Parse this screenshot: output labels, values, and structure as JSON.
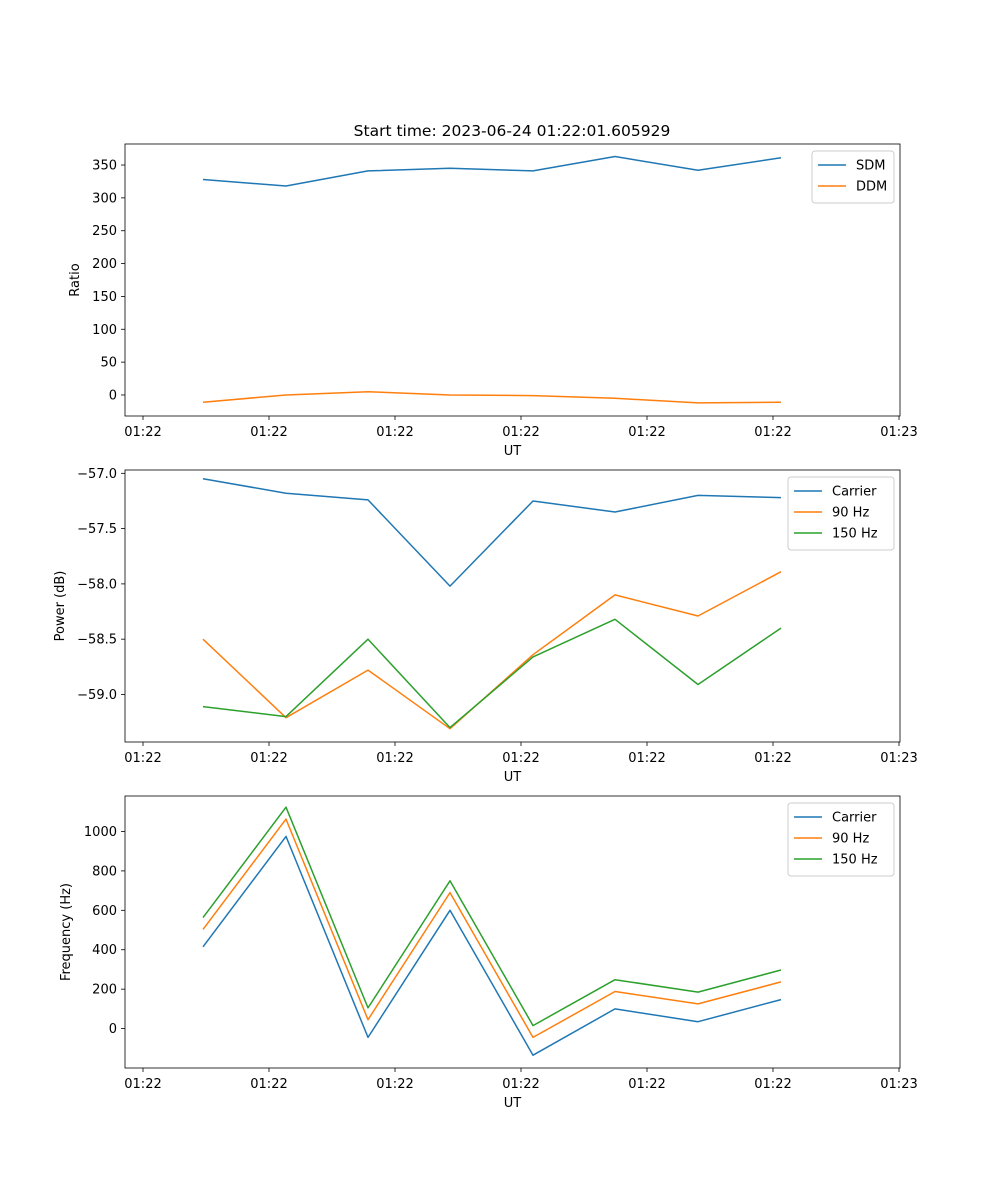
{
  "figure": {
    "title": "Start time: 2023-06-24 01:22:01.605929"
  },
  "colors": {
    "blue": "#1f77b4",
    "orange": "#ff7f0e",
    "green": "#2ca02c"
  },
  "chart_data": [
    {
      "type": "line",
      "xlabel": "UT",
      "ylabel": "Ratio",
      "x_tick_labels": [
        "01:22",
        "01:22",
        "01:22",
        "01:22",
        "01:22",
        "01:22",
        "01:23"
      ],
      "y_ticks": [
        0,
        50,
        100,
        150,
        200,
        250,
        300,
        350
      ],
      "ylim": [
        -32,
        382
      ],
      "x_sample_index": [
        1,
        2,
        3,
        4,
        5,
        6,
        7,
        8
      ],
      "series": [
        {
          "name": "SDM",
          "color": "#1f77b4",
          "values": [
            328,
            318,
            341,
            345,
            341,
            363,
            342,
            361
          ]
        },
        {
          "name": "DDM",
          "color": "#ff7f0e",
          "values": [
            -11,
            0,
            5,
            0,
            -1,
            -5,
            -12,
            -11
          ]
        }
      ],
      "legend": "top-right",
      "grid": false
    },
    {
      "type": "line",
      "xlabel": "UT",
      "ylabel": "Power (dB)",
      "x_tick_labels": [
        "01:22",
        "01:22",
        "01:22",
        "01:22",
        "01:22",
        "01:22",
        "01:23"
      ],
      "y_ticks": [
        -59.0,
        -58.5,
        -58.0,
        -57.5,
        -57.0
      ],
      "y_tick_labels": [
        "−59.0",
        "−58.5",
        "−58.0",
        "−57.5",
        "−57.0"
      ],
      "ylim": [
        -59.43,
        -56.97
      ],
      "x_sample_index": [
        1,
        2,
        3,
        4,
        5,
        6,
        7,
        8
      ],
      "series": [
        {
          "name": "Carrier",
          "color": "#1f77b4",
          "values": [
            -57.05,
            -57.18,
            -57.24,
            -58.02,
            -57.25,
            -57.35,
            -57.2,
            -57.22
          ]
        },
        {
          "name": "90 Hz",
          "color": "#ff7f0e",
          "values": [
            -58.5,
            -59.21,
            -58.78,
            -59.31,
            -58.64,
            -58.1,
            -58.29,
            -57.89
          ]
        },
        {
          "name": "150 Hz",
          "color": "#2ca02c",
          "values": [
            -59.11,
            -59.2,
            -58.5,
            -59.3,
            -58.66,
            -58.32,
            -58.91,
            -58.4
          ]
        }
      ],
      "legend": "top-right",
      "grid": false
    },
    {
      "type": "line",
      "xlabel": "UT",
      "ylabel": "Frequency (Hz)",
      "x_tick_labels": [
        "01:22",
        "01:22",
        "01:22",
        "01:22",
        "01:22",
        "01:22",
        "01:23"
      ],
      "y_ticks": [
        0,
        200,
        400,
        600,
        800,
        1000
      ],
      "ylim": [
        -200,
        1180
      ],
      "x_sample_index": [
        1,
        2,
        3,
        4,
        5,
        6,
        7,
        8
      ],
      "series": [
        {
          "name": "Carrier",
          "color": "#1f77b4",
          "values": [
            415,
            975,
            -45,
            600,
            -135,
            100,
            35,
            147
          ]
        },
        {
          "name": "90 Hz",
          "color": "#ff7f0e",
          "values": [
            503,
            1063,
            45,
            690,
            -45,
            188,
            125,
            237
          ]
        },
        {
          "name": "150 Hz",
          "color": "#2ca02c",
          "values": [
            563,
            1123,
            105,
            750,
            15,
            248,
            185,
            297
          ]
        }
      ],
      "legend": "top-right",
      "grid": false
    }
  ]
}
